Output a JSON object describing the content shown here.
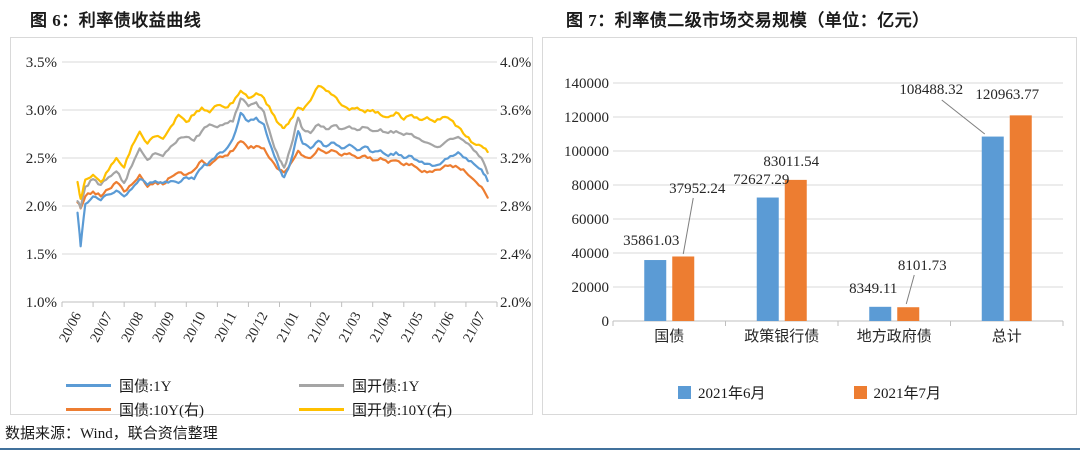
{
  "figure6": {
    "title": "图 6：利率债收益曲线"
  },
  "figure7": {
    "title": "图 7：利率债二级市场交易规模（单位：亿元）"
  },
  "footer": {
    "source": "数据来源：Wind，联合资信整理"
  },
  "colors": {
    "blue": "#5B9BD5",
    "orange": "#ED7D31",
    "gray": "#A5A5A5",
    "yellow": "#FFC000",
    "grid": "#D9D9D9",
    "axis": "#BFBFBF",
    "leader": "#7F7F7F",
    "panel_border": "#D9D9D9",
    "bottom_rule": "#41719C",
    "text": "#262626"
  },
  "chart_data": [
    {
      "type": "line",
      "title": "图 6：利率债收益曲线",
      "x_tick_labels": [
        "20/06",
        "20/07",
        "20/08",
        "20/09",
        "20/10",
        "20/11",
        "20/12",
        "21/01",
        "21/02",
        "21/03",
        "21/04",
        "21/05",
        "21/06",
        "21/07"
      ],
      "left_axis": {
        "tick_labels": [
          "3.5%",
          "3.0%",
          "2.5%",
          "2.0%",
          "1.5%",
          "1.0%"
        ],
        "min": 1.0,
        "max": 3.5,
        "step": 0.5
      },
      "right_axis": {
        "tick_labels": [
          "4.0%",
          "3.6%",
          "3.2%",
          "2.8%",
          "2.4%",
          "2.0%"
        ],
        "min": 2.0,
        "max": 4.0,
        "step": 0.4
      },
      "grid": true,
      "legend_position": "bottom",
      "x": [
        0,
        0.1,
        0.25,
        0.5,
        0.75,
        1,
        1.25,
        1.5,
        1.75,
        2,
        2.25,
        2.5,
        2.75,
        3,
        3.25,
        3.5,
        3.75,
        4,
        4.25,
        4.5,
        4.75,
        5,
        5.25,
        5.5,
        5.75,
        6,
        6.25,
        6.5,
        6.65,
        6.85,
        7.1,
        7.25,
        7.5,
        7.75,
        8,
        8.25,
        8.5,
        8.75,
        9,
        9.25,
        9.5,
        9.75,
        10,
        10.25,
        10.5,
        10.75,
        11,
        11.25,
        11.5,
        11.75,
        12,
        12.25,
        12.5,
        12.75,
        13,
        13.2
      ],
      "series": [
        {
          "name": "国债:1Y",
          "axis": "left",
          "color": "#5B9BD5",
          "values": [
            1.93,
            1.58,
            2.02,
            2.1,
            2.06,
            2.12,
            2.16,
            2.1,
            2.18,
            2.28,
            2.22,
            2.26,
            2.24,
            2.26,
            2.24,
            2.3,
            2.28,
            2.4,
            2.46,
            2.54,
            2.58,
            2.7,
            2.97,
            2.88,
            2.92,
            2.85,
            2.6,
            2.38,
            2.3,
            2.45,
            2.78,
            2.65,
            2.6,
            2.68,
            2.62,
            2.66,
            2.6,
            2.64,
            2.58,
            2.62,
            2.56,
            2.58,
            2.52,
            2.56,
            2.5,
            2.52,
            2.46,
            2.44,
            2.42,
            2.46,
            2.52,
            2.56,
            2.5,
            2.44,
            2.38,
            2.26
          ]
        },
        {
          "name": "国开债:1Y",
          "axis": "left",
          "color": "#A5A5A5",
          "values": [
            2.05,
            1.98,
            2.2,
            2.28,
            2.22,
            2.3,
            2.36,
            2.24,
            2.42,
            2.6,
            2.48,
            2.55,
            2.52,
            2.62,
            2.7,
            2.72,
            2.68,
            2.78,
            2.85,
            2.82,
            2.86,
            2.88,
            3.12,
            3.04,
            3.08,
            2.98,
            2.7,
            2.48,
            2.4,
            2.6,
            2.92,
            2.8,
            2.76,
            2.85,
            2.8,
            2.84,
            2.8,
            2.83,
            2.79,
            2.82,
            2.78,
            2.8,
            2.76,
            2.78,
            2.74,
            2.75,
            2.7,
            2.66,
            2.62,
            2.64,
            2.7,
            2.72,
            2.66,
            2.58,
            2.5,
            2.34
          ]
        },
        {
          "name": "国债:10Y(右)",
          "axis": "right",
          "color": "#ED7D31",
          "values": [
            2.83,
            2.78,
            2.88,
            2.92,
            2.88,
            2.94,
            3.0,
            2.92,
            2.98,
            3.06,
            2.96,
            3.0,
            2.98,
            3.04,
            3.08,
            3.06,
            3.1,
            3.18,
            3.14,
            3.2,
            3.22,
            3.26,
            3.34,
            3.28,
            3.3,
            3.28,
            3.18,
            3.1,
            3.08,
            3.15,
            3.26,
            3.22,
            3.2,
            3.28,
            3.24,
            3.26,
            3.22,
            3.24,
            3.2,
            3.22,
            3.18,
            3.2,
            3.16,
            3.18,
            3.14,
            3.15,
            3.1,
            3.08,
            3.1,
            3.12,
            3.14,
            3.12,
            3.08,
            3.02,
            2.96,
            2.87
          ]
        },
        {
          "name": "国开债:10Y(右)",
          "axis": "right",
          "color": "#FFC000",
          "values": [
            3.0,
            2.86,
            3.02,
            3.06,
            3.0,
            3.1,
            3.2,
            3.12,
            3.3,
            3.42,
            3.32,
            3.38,
            3.36,
            3.46,
            3.56,
            3.5,
            3.56,
            3.62,
            3.58,
            3.64,
            3.62,
            3.66,
            3.76,
            3.7,
            3.74,
            3.7,
            3.58,
            3.48,
            3.45,
            3.52,
            3.62,
            3.6,
            3.68,
            3.8,
            3.76,
            3.72,
            3.64,
            3.6,
            3.62,
            3.58,
            3.6,
            3.56,
            3.54,
            3.58,
            3.52,
            3.56,
            3.52,
            3.54,
            3.5,
            3.54,
            3.52,
            3.46,
            3.38,
            3.32,
            3.3,
            3.25
          ]
        }
      ]
    },
    {
      "type": "bar",
      "title": "图 7：利率债二级市场交易规模（单位：亿元）",
      "unit": "亿元",
      "categories": [
        "国债",
        "政策银行债",
        "地方政府债",
        "总计"
      ],
      "series": [
        {
          "name": "2021年6月",
          "color": "#5B9BD5",
          "values": [
            35861.03,
            72627.29,
            8349.11,
            108488.32
          ]
        },
        {
          "name": "2021年7月",
          "color": "#ED7D31",
          "values": [
            37952.24,
            83011.54,
            8101.73,
            120963.77
          ]
        }
      ],
      "ylim": [
        0,
        140000
      ],
      "ytick_step": 20000,
      "grid": true,
      "legend_position": "bottom"
    }
  ]
}
